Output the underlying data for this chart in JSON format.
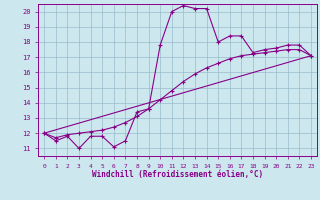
{
  "xlabel": "Windchill (Refroidissement éolien,°C)",
  "xlim": [
    -0.5,
    23.5
  ],
  "ylim": [
    10.5,
    20.5
  ],
  "yticks": [
    11,
    12,
    13,
    14,
    15,
    16,
    17,
    18,
    19,
    20
  ],
  "xticks": [
    0,
    1,
    2,
    3,
    4,
    5,
    6,
    7,
    8,
    9,
    10,
    11,
    12,
    13,
    14,
    15,
    16,
    17,
    18,
    19,
    20,
    21,
    22,
    23
  ],
  "bg_color": "#cce8ee",
  "line_color": "#880088",
  "grid_color": "#99bbcc",
  "line1_x": [
    0,
    1,
    2,
    3,
    4,
    5,
    6,
    7,
    8,
    9,
    10,
    11,
    12,
    13,
    14,
    15,
    16,
    17,
    18,
    19,
    20,
    21,
    22,
    23
  ],
  "line1_y": [
    12.0,
    11.5,
    11.8,
    11.0,
    11.8,
    11.8,
    11.1,
    11.5,
    13.4,
    13.6,
    17.8,
    20.0,
    20.4,
    20.2,
    20.2,
    18.0,
    18.4,
    18.4,
    17.3,
    17.5,
    17.6,
    17.8,
    17.8,
    17.1
  ],
  "line2_x": [
    0,
    1,
    2,
    3,
    4,
    5,
    6,
    7,
    8,
    9,
    10,
    11,
    12,
    13,
    14,
    15,
    16,
    17,
    18,
    19,
    20,
    21,
    22,
    23
  ],
  "line2_y": [
    12.0,
    11.7,
    11.9,
    12.0,
    12.1,
    12.2,
    12.4,
    12.7,
    13.1,
    13.6,
    14.2,
    14.8,
    15.4,
    15.9,
    16.3,
    16.6,
    16.9,
    17.1,
    17.2,
    17.3,
    17.4,
    17.5,
    17.5,
    17.1
  ],
  "line3_x": [
    0,
    23
  ],
  "line3_y": [
    12.0,
    17.1
  ]
}
